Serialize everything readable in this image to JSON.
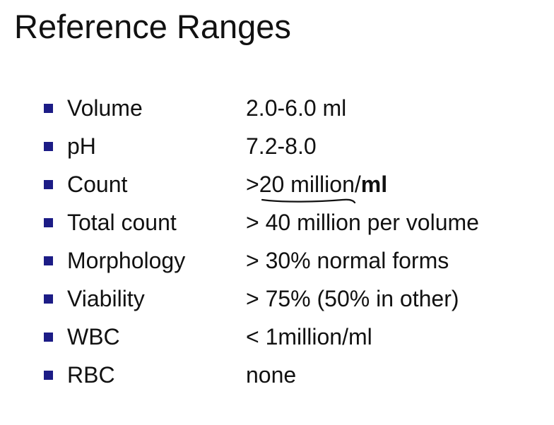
{
  "title": "Reference Ranges",
  "rows": [
    {
      "label": "Volume",
      "value": "2.0-6.0 ml"
    },
    {
      "label": "pH",
      "value": "7.2-8.0"
    },
    {
      "label": "Count",
      "value": [
        ">20 million/",
        "ml"
      ]
    },
    {
      "label": "Total count",
      "value": "> 40 million per volume"
    },
    {
      "label": "Morphology",
      "value": "> 30% normal forms"
    },
    {
      "label": "Viability",
      "value": "> 75% (50% in other)"
    },
    {
      "label": "WBC",
      "value": "< 1million/ml"
    },
    {
      "label": "RBC",
      "value": "none"
    }
  ]
}
